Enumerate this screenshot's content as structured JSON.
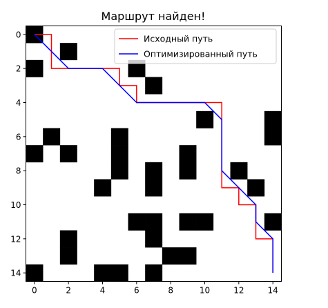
{
  "chart_data": {
    "type": "heatmap",
    "title": "Маршрут найден!",
    "xlabel": "",
    "ylabel": "",
    "xlim": [
      -0.5,
      14.5
    ],
    "ylim": [
      14.5,
      -0.5
    ],
    "x_ticks": [
      0,
      2,
      4,
      6,
      8,
      10,
      12,
      14
    ],
    "y_ticks": [
      0,
      2,
      4,
      6,
      8,
      10,
      12,
      14
    ],
    "grid": false,
    "legend_position": "top-right",
    "grid_values": [
      [
        1,
        0,
        0,
        0,
        0,
        0,
        0,
        0,
        0,
        0,
        0,
        0,
        0,
        0,
        0
      ],
      [
        0,
        0,
        1,
        0,
        0,
        0,
        0,
        0,
        0,
        0,
        0,
        0,
        0,
        0,
        0
      ],
      [
        1,
        0,
        0,
        0,
        0,
        0,
        1,
        0,
        0,
        0,
        0,
        0,
        0,
        0,
        0
      ],
      [
        0,
        0,
        0,
        0,
        0,
        0,
        0,
        1,
        0,
        0,
        0,
        0,
        0,
        0,
        0
      ],
      [
        0,
        0,
        0,
        0,
        0,
        0,
        0,
        0,
        0,
        0,
        0,
        0,
        0,
        0,
        0
      ],
      [
        0,
        0,
        0,
        0,
        0,
        0,
        0,
        0,
        0,
        0,
        1,
        0,
        0,
        0,
        1
      ],
      [
        0,
        1,
        0,
        0,
        0,
        1,
        0,
        0,
        0,
        0,
        0,
        0,
        0,
        0,
        1
      ],
      [
        1,
        0,
        1,
        0,
        0,
        1,
        0,
        0,
        0,
        1,
        0,
        0,
        0,
        0,
        0
      ],
      [
        0,
        0,
        0,
        0,
        0,
        1,
        0,
        1,
        0,
        1,
        0,
        0,
        1,
        0,
        0
      ],
      [
        0,
        0,
        0,
        0,
        1,
        0,
        0,
        1,
        0,
        0,
        0,
        0,
        0,
        1,
        0
      ],
      [
        0,
        0,
        0,
        0,
        0,
        0,
        0,
        0,
        0,
        0,
        0,
        0,
        0,
        0,
        0
      ],
      [
        0,
        0,
        0,
        0,
        0,
        0,
        1,
        1,
        0,
        1,
        1,
        0,
        0,
        0,
        1
      ],
      [
        0,
        0,
        1,
        0,
        0,
        0,
        0,
        1,
        0,
        0,
        0,
        0,
        0,
        0,
        0
      ],
      [
        0,
        0,
        1,
        0,
        0,
        0,
        0,
        0,
        1,
        1,
        0,
        0,
        0,
        0,
        0
      ],
      [
        1,
        0,
        0,
        0,
        1,
        1,
        0,
        1,
        0,
        0,
        0,
        0,
        0,
        0,
        0
      ]
    ],
    "series": [
      {
        "name": "Исходный путь",
        "color": "#ff0000",
        "x": [
          0,
          1,
          1,
          2,
          3,
          4,
          5,
          5,
          6,
          6,
          7,
          8,
          9,
          10,
          11,
          11,
          11,
          11,
          11,
          11,
          12,
          12,
          13,
          13,
          14,
          14,
          14
        ],
        "y": [
          0,
          0,
          2,
          2,
          2,
          2,
          2,
          3,
          3,
          4,
          4,
          4,
          4,
          4,
          4,
          5,
          6,
          7,
          8,
          9,
          9,
          10,
          10,
          12,
          12,
          13,
          14
        ]
      },
      {
        "name": "Оптимизированный путь",
        "color": "#0000ff",
        "x": [
          0,
          2,
          4,
          6,
          10,
          11,
          11,
          13,
          13,
          14,
          14
        ],
        "y": [
          0,
          2,
          2,
          4,
          4,
          5,
          8,
          10,
          11,
          12,
          14
        ]
      }
    ]
  }
}
